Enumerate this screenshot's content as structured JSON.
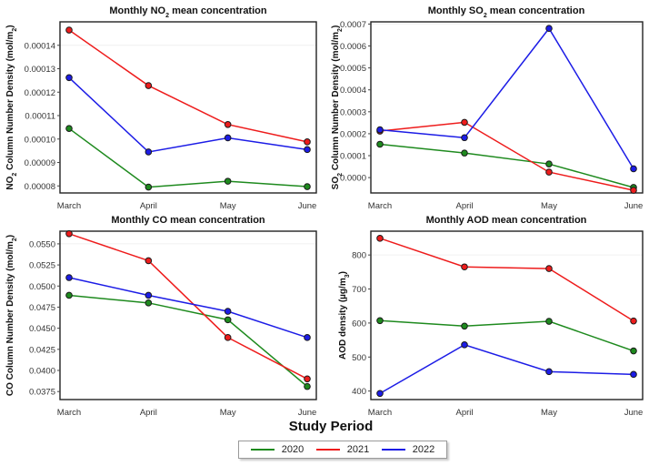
{
  "figure": {
    "xlabel": "Study Period",
    "legend": [
      {
        "name": "2020",
        "color": "#1e8a1e"
      },
      {
        "name": "2021",
        "color": "#ee1c1c"
      },
      {
        "name": "2022",
        "color": "#1c1ce6"
      }
    ]
  },
  "chart_data": [
    {
      "type": "line",
      "id": "no2",
      "title_parts": [
        "Monthly NO",
        "2",
        " mean concentration"
      ],
      "ylabel_parts": [
        "NO",
        "2",
        " Column Number Density (mol/m",
        "2",
        ")"
      ],
      "categories": [
        "March",
        "April",
        "May",
        "June"
      ],
      "ylim": [
        7.7e-05,
        0.00015
      ],
      "yticks": [
        8e-05,
        9e-05,
        0.0001,
        0.00011,
        0.00012,
        0.00013,
        0.00014
      ],
      "ytick_labels": [
        "0.00008",
        "0.00009",
        "0.00010",
        "0.00011",
        "0.00012",
        "0.00013",
        "0.00014"
      ],
      "series": [
        {
          "name": "2020",
          "values": [
            0.0001045,
            7.95e-05,
            8.2e-05,
            7.97e-05
          ]
        },
        {
          "name": "2021",
          "values": [
            0.0001465,
            0.0001228,
            0.0001062,
            9.88e-05
          ]
        },
        {
          "name": "2022",
          "values": [
            0.0001262,
            9.45e-05,
            0.0001005,
            9.55e-05
          ]
        }
      ]
    },
    {
      "type": "line",
      "id": "so2",
      "title_parts": [
        "Monthly SO",
        "2",
        " mean concentration"
      ],
      "ylabel_parts": [
        "SO",
        "2",
        " Column Number Density (mol/m",
        "2",
        ")"
      ],
      "categories": [
        "March",
        "April",
        "May",
        "June"
      ],
      "ylim": [
        -7e-05,
        0.00071
      ],
      "yticks": [
        0,
        0.0001,
        0.0002,
        0.0003,
        0.0004,
        0.0005,
        0.0006,
        0.0007
      ],
      "ytick_labels": [
        "0.0000",
        "0.0001",
        "0.0002",
        "0.0003",
        "0.0004",
        "0.0005",
        "0.0006",
        "0.0007"
      ],
      "series": [
        {
          "name": "2020",
          "values": [
            0.000152,
            0.000112,
            6.2e-05,
            -4.5e-05
          ]
        },
        {
          "name": "2021",
          "values": [
            0.000212,
            0.000252,
            2.5e-05,
            -5.8e-05
          ]
        },
        {
          "name": "2022",
          "values": [
            0.000218,
            0.000182,
            0.00068,
            4e-05
          ]
        }
      ]
    },
    {
      "type": "line",
      "id": "co",
      "title_parts": [
        "Monthly CO mean concentration"
      ],
      "ylabel_parts": [
        "CO Column Number Density (mol/m",
        "2",
        ")"
      ],
      "categories": [
        "March",
        "April",
        "May",
        "June"
      ],
      "ylim": [
        0.03655,
        0.0565
      ],
      "yticks": [
        0.0375,
        0.04,
        0.0425,
        0.045,
        0.0475,
        0.05,
        0.0525,
        0.055
      ],
      "ytick_labels": [
        "0.0375",
        "0.0400",
        "0.0425",
        "0.0450",
        "0.0475",
        "0.0500",
        "0.0525",
        "0.0550"
      ],
      "series": [
        {
          "name": "2020",
          "values": [
            0.0489,
            0.048,
            0.046,
            0.0381
          ]
        },
        {
          "name": "2021",
          "values": [
            0.0562,
            0.053,
            0.0439,
            0.039
          ]
        },
        {
          "name": "2022",
          "values": [
            0.051,
            0.0489,
            0.047,
            0.0439
          ]
        }
      ]
    },
    {
      "type": "line",
      "id": "aod",
      "title_parts": [
        "Monthly AOD mean concentration"
      ],
      "ylabel_parts": [
        "AOD density (µg/m",
        "3",
        ")"
      ],
      "categories": [
        "March",
        "April",
        "May",
        "June"
      ],
      "ylim": [
        375,
        870
      ],
      "yticks": [
        400,
        500,
        600,
        700,
        800
      ],
      "ytick_labels": [
        "400",
        "500",
        "600",
        "700",
        "800"
      ],
      "series": [
        {
          "name": "2020",
          "values": [
            607,
            591,
            605,
            518
          ]
        },
        {
          "name": "2021",
          "values": [
            849,
            765,
            760,
            606
          ]
        },
        {
          "name": "2022",
          "values": [
            393,
            536,
            457,
            449
          ]
        }
      ]
    }
  ]
}
